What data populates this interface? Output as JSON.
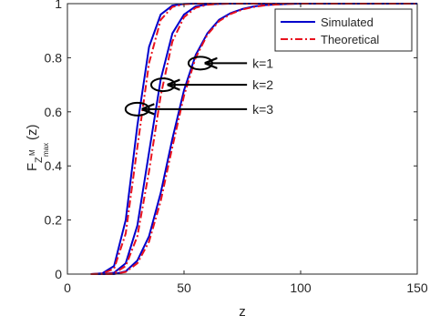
{
  "chart_data": {
    "type": "line",
    "title": "",
    "xlabel": "z",
    "ylabel_main": "F",
    "ylabel_sub": "Z",
    "ylabel_sup": "M",
    "ylabel_subsub": "max",
    "ylabel_paren": "(z)",
    "xlim": [
      0,
      150
    ],
    "ylim": [
      0,
      1
    ],
    "xticks": [
      0,
      50,
      100,
      150
    ],
    "yticks": [
      0,
      0.2,
      0.4,
      0.6,
      0.8,
      1
    ],
    "grid": false,
    "legend_position": "top-right",
    "legend": [
      {
        "label": "Simulated",
        "color": "#0000cc",
        "style": "solid"
      },
      {
        "label": "Theoretical",
        "color": "#e8121e",
        "style": "dashdot"
      }
    ],
    "x": [
      10,
      15,
      20,
      25,
      30,
      35,
      40,
      45,
      50,
      55,
      60,
      65,
      70,
      75,
      80,
      85,
      90,
      95,
      100,
      110,
      120,
      130,
      140,
      150
    ],
    "series": [
      {
        "group": "k=3",
        "kind": "simulated",
        "values": [
          0,
          0.003,
          0.03,
          0.2,
          0.55,
          0.84,
          0.96,
          0.993,
          0.999,
          1,
          1,
          1,
          1,
          1,
          1,
          1,
          1,
          1,
          1,
          1,
          1,
          1,
          1,
          1
        ]
      },
      {
        "group": "k=3",
        "kind": "theoretical",
        "values": [
          0,
          0.002,
          0.02,
          0.15,
          0.47,
          0.78,
          0.94,
          0.988,
          0.998,
          1,
          1,
          1,
          1,
          1,
          1,
          1,
          1,
          1,
          1,
          1,
          1,
          1,
          1,
          1
        ]
      },
      {
        "group": "k=2",
        "kind": "simulated",
        "values": [
          0,
          0,
          0.005,
          0.04,
          0.18,
          0.45,
          0.72,
          0.89,
          0.96,
          0.99,
          0.997,
          0.999,
          1,
          1,
          1,
          1,
          1,
          1,
          1,
          1,
          1,
          1,
          1,
          1
        ]
      },
      {
        "group": "k=2",
        "kind": "theoretical",
        "values": [
          0,
          0,
          0.003,
          0.03,
          0.14,
          0.38,
          0.66,
          0.86,
          0.95,
          0.985,
          0.996,
          0.999,
          1,
          1,
          1,
          1,
          1,
          1,
          1,
          1,
          1,
          1,
          1,
          1
        ]
      },
      {
        "group": "k=1",
        "kind": "simulated",
        "values": [
          0,
          0,
          0,
          0.01,
          0.05,
          0.14,
          0.3,
          0.5,
          0.68,
          0.81,
          0.89,
          0.94,
          0.965,
          0.98,
          0.99,
          0.995,
          0.997,
          0.999,
          1,
          1,
          1,
          1,
          1,
          1
        ]
      },
      {
        "group": "k=1",
        "kind": "theoretical",
        "values": [
          0,
          0,
          0,
          0.008,
          0.04,
          0.12,
          0.27,
          0.47,
          0.66,
          0.8,
          0.885,
          0.935,
          0.962,
          0.978,
          0.988,
          0.994,
          0.997,
          0.999,
          1,
          1,
          1,
          1,
          1,
          1
        ]
      }
    ],
    "annotations": [
      {
        "label": "k=1",
        "ellipse": {
          "x": 57,
          "y": 0.78
        },
        "text_at": {
          "x": 77,
          "y": 0.78
        }
      },
      {
        "label": "k=2",
        "ellipse": {
          "x": 41,
          "y": 0.7
        },
        "text_at": {
          "x": 77,
          "y": 0.7
        }
      },
      {
        "label": "k=3",
        "ellipse": {
          "x": 30,
          "y": 0.61
        },
        "text_at": {
          "x": 77,
          "y": 0.61
        }
      }
    ]
  }
}
